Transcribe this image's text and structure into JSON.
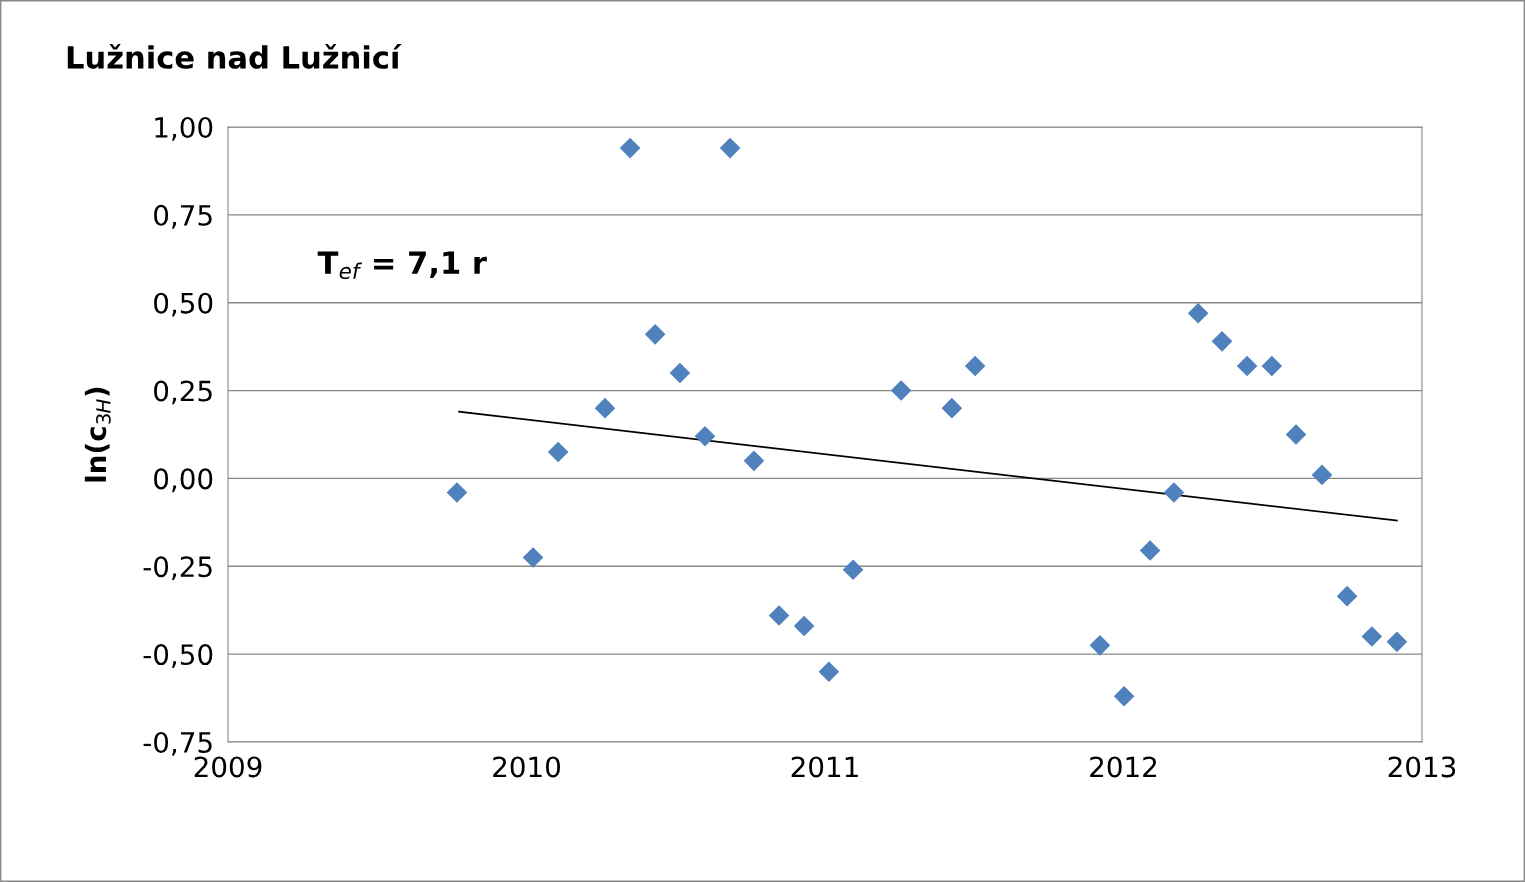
{
  "chart_data": {
    "type": "scatter",
    "title": "Lužnice nad Lužnicí",
    "ylabel": "ln(c$_{3H}$)",
    "annotations": [
      "T$_{ef}$ = 7,1 r"
    ],
    "xlim": [
      2009,
      2013
    ],
    "xticks": [
      2009,
      2010,
      2011,
      2012,
      2013
    ],
    "ylim": [
      -0.75,
      1.0
    ],
    "yticks": [
      {
        "value": -0.75,
        "label": "-0,75"
      },
      {
        "value": -0.5,
        "label": "-0,50"
      },
      {
        "value": -0.25,
        "label": "-0,25"
      },
      {
        "value": 0,
        "label": "0,00"
      },
      {
        "value": 0.25,
        "label": "0,25"
      },
      {
        "value": 0.5,
        "label": "0,50"
      },
      {
        "value": 0.75,
        "label": "0,75"
      },
      {
        "value": 1.0,
        "label": "1,00"
      }
    ],
    "grid": "y",
    "series": [
      {
        "marker": "diamond",
        "color": "#4f81bd",
        "x": [
          2009.767,
          2010.022,
          2010.106,
          2010.263,
          2010.347,
          2010.431,
          2010.514,
          2010.598,
          2010.682,
          2010.762,
          2010.846,
          2010.93,
          2011.013,
          2011.094,
          2011.255,
          2011.425,
          2011.503,
          2011.921,
          2012.002,
          2012.089,
          2012.169,
          2012.25,
          2012.33,
          2012.414,
          2012.497,
          2012.578,
          2012.665,
          2012.749,
          2012.832,
          2012.916
        ],
        "values": [
          -0.04,
          -0.225,
          0.075,
          0.2,
          0.94,
          0.41,
          0.3,
          0.12,
          0.94,
          0.05,
          -0.39,
          -0.42,
          -0.55,
          -0.26,
          0.25,
          0.2,
          0.32,
          -0.475,
          -0.62,
          -0.205,
          -0.04,
          0.47,
          0.39,
          0.32,
          0.32,
          0.125,
          0.01,
          -0.335,
          -0.45,
          -0.465
        ]
      },
      {
        "type": "line",
        "marker": "none",
        "color": "#000000",
        "x": [
          2009.774,
          2012.916
        ],
        "values": [
          0.19,
          -0.12
        ]
      }
    ]
  }
}
